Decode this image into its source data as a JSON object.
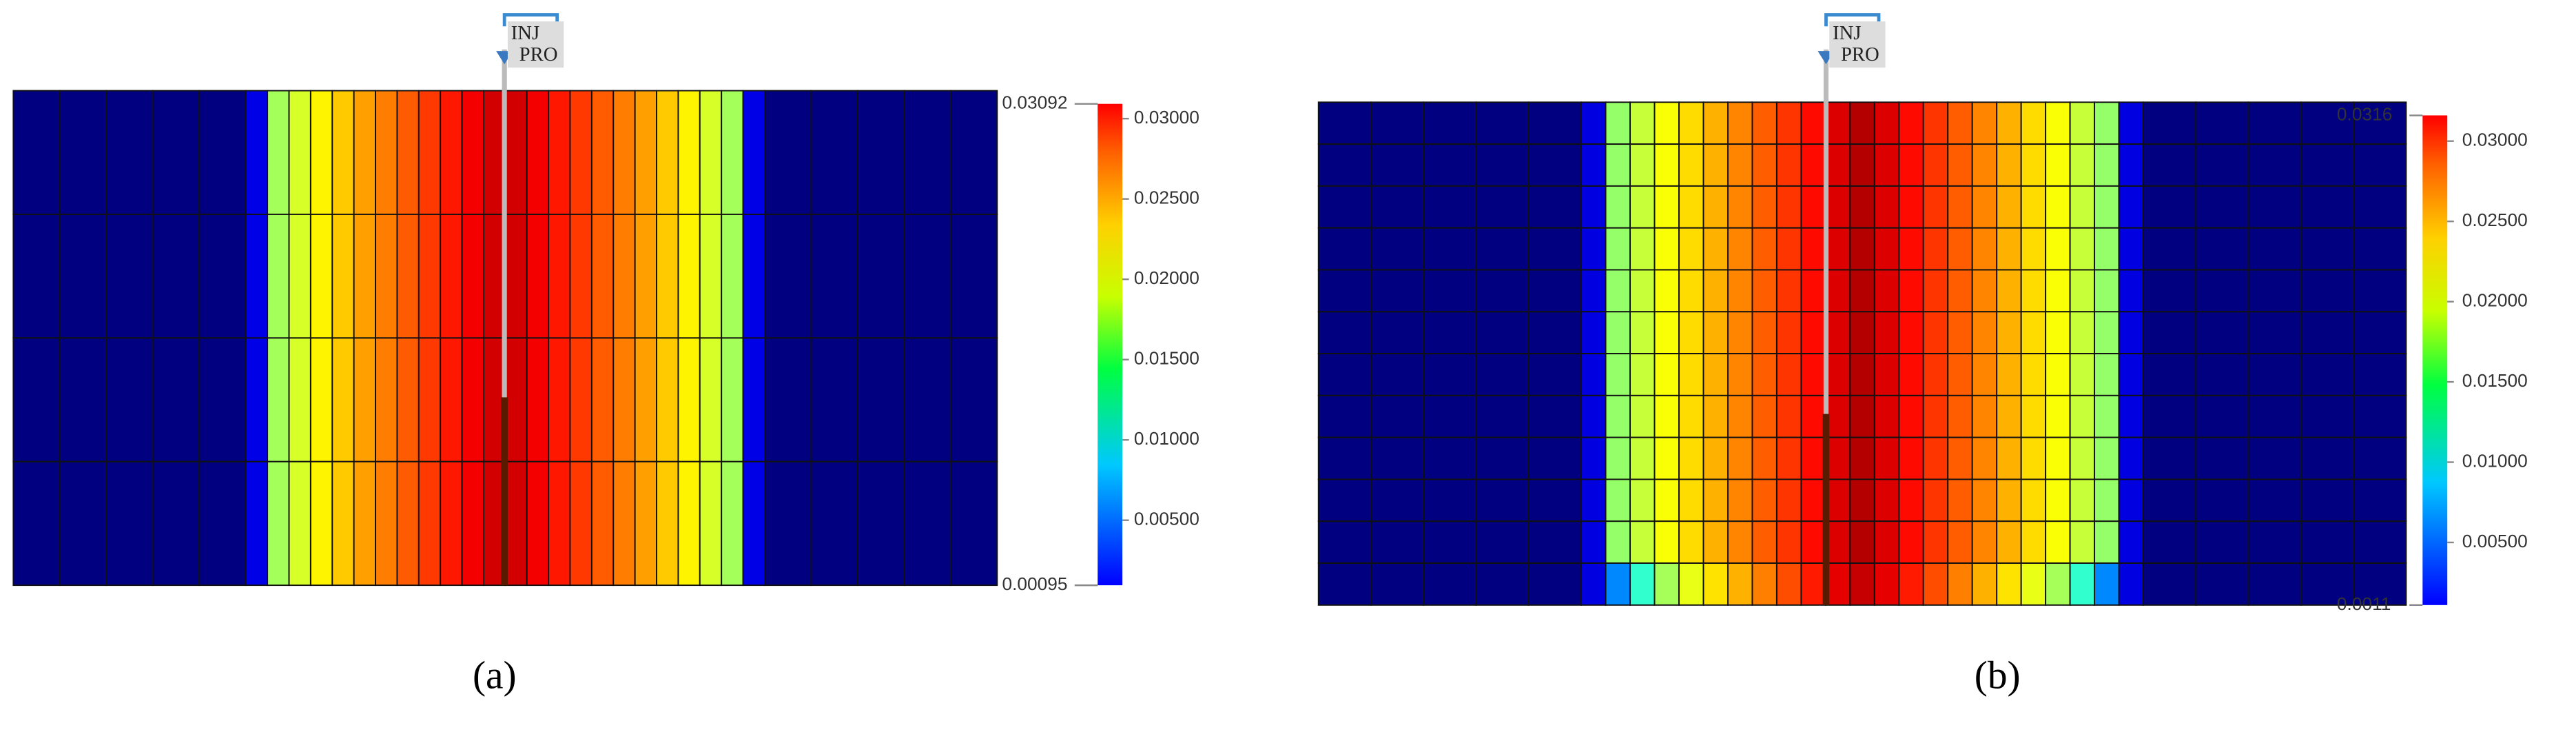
{
  "chart_data": [
    {
      "type": "heatmap",
      "label": "(a)",
      "well_labels": [
        "INJ",
        "PRO"
      ],
      "values": [
        [
          0.00095,
          0.00095,
          0.00095,
          0.00095,
          0.00095,
          0.004,
          0.017,
          0.0185,
          0.02,
          0.0212,
          0.0225,
          0.0235,
          0.0245,
          0.0255,
          0.0265,
          0.0275,
          0.0285,
          0.0285,
          0.0275,
          0.0265,
          0.0255,
          0.0245,
          0.0235,
          0.0225,
          0.0212,
          0.02,
          0.0185,
          0.017,
          0.004,
          0.00095,
          0.00095,
          0.00095,
          0.00095,
          0.00095
        ],
        [
          0.00095,
          0.00095,
          0.00095,
          0.00095,
          0.00095,
          0.004,
          0.017,
          0.0185,
          0.02,
          0.0212,
          0.0225,
          0.0235,
          0.0245,
          0.0255,
          0.0265,
          0.0275,
          0.0285,
          0.0285,
          0.0275,
          0.0265,
          0.0255,
          0.0245,
          0.0235,
          0.0225,
          0.0212,
          0.02,
          0.0185,
          0.017,
          0.004,
          0.00095,
          0.00095,
          0.00095,
          0.00095,
          0.00095
        ],
        [
          0.00095,
          0.00095,
          0.00095,
          0.00095,
          0.00095,
          0.004,
          0.017,
          0.0185,
          0.02,
          0.0212,
          0.0225,
          0.0235,
          0.0245,
          0.0255,
          0.0265,
          0.0275,
          0.0285,
          0.0285,
          0.0275,
          0.0265,
          0.0255,
          0.0245,
          0.0235,
          0.0225,
          0.0212,
          0.02,
          0.0185,
          0.017,
          0.004,
          0.00095,
          0.00095,
          0.00095,
          0.00095,
          0.00095
        ],
        [
          0.00095,
          0.00095,
          0.00095,
          0.00095,
          0.00095,
          0.004,
          0.017,
          0.0185,
          0.02,
          0.0212,
          0.0225,
          0.0235,
          0.0245,
          0.0255,
          0.0265,
          0.0275,
          0.0285,
          0.0285,
          0.0275,
          0.0265,
          0.0255,
          0.0245,
          0.0235,
          0.0225,
          0.0212,
          0.02,
          0.0185,
          0.017,
          0.004,
          0.00095,
          0.00095,
          0.00095,
          0.00095,
          0.00095
        ]
      ],
      "clim": [
        0.00095,
        0.03092
      ],
      "cticks": [
        {
          "value": 0.005,
          "label": "0.00500"
        },
        {
          "value": 0.01,
          "label": "0.01000"
        },
        {
          "value": 0.015,
          "label": "0.01500"
        },
        {
          "value": 0.02,
          "label": "0.02000"
        },
        {
          "value": 0.025,
          "label": "0.02500"
        },
        {
          "value": 0.03,
          "label": "0.03000"
        }
      ]
    },
    {
      "type": "heatmap",
      "label": "(b)",
      "well_labels": [
        "INJ",
        "PRO"
      ],
      "values": [
        [
          0.0011,
          0.0011,
          0.0011,
          0.0011,
          0.0011,
          0.004,
          0.017,
          0.0185,
          0.02,
          0.0212,
          0.0225,
          0.0238,
          0.025,
          0.0262,
          0.0275,
          0.0288,
          0.03,
          0.0288,
          0.0275,
          0.0262,
          0.025,
          0.0238,
          0.0225,
          0.0212,
          0.02,
          0.0185,
          0.017,
          0.004,
          0.0011,
          0.0011,
          0.0011,
          0.0011,
          0.0011
        ],
        [
          0.0011,
          0.0011,
          0.0011,
          0.0011,
          0.0011,
          0.004,
          0.017,
          0.0185,
          0.02,
          0.0212,
          0.0225,
          0.0238,
          0.025,
          0.0262,
          0.0275,
          0.0288,
          0.03,
          0.0288,
          0.0275,
          0.0262,
          0.025,
          0.0238,
          0.0225,
          0.0212,
          0.02,
          0.0185,
          0.017,
          0.004,
          0.0011,
          0.0011,
          0.0011,
          0.0011,
          0.0011
        ],
        [
          0.0011,
          0.0011,
          0.0011,
          0.0011,
          0.0011,
          0.004,
          0.017,
          0.0185,
          0.02,
          0.0212,
          0.0225,
          0.0238,
          0.025,
          0.0262,
          0.0275,
          0.0288,
          0.03,
          0.0288,
          0.0275,
          0.0262,
          0.025,
          0.0238,
          0.0225,
          0.0212,
          0.02,
          0.0185,
          0.017,
          0.004,
          0.0011,
          0.0011,
          0.0011,
          0.0011,
          0.0011
        ],
        [
          0.0011,
          0.0011,
          0.0011,
          0.0011,
          0.0011,
          0.004,
          0.017,
          0.0185,
          0.02,
          0.0212,
          0.0225,
          0.0238,
          0.025,
          0.0262,
          0.0275,
          0.0288,
          0.03,
          0.0288,
          0.0275,
          0.0262,
          0.025,
          0.0238,
          0.0225,
          0.0212,
          0.02,
          0.0185,
          0.017,
          0.004,
          0.0011,
          0.0011,
          0.0011,
          0.0011,
          0.0011
        ],
        [
          0.0011,
          0.0011,
          0.0011,
          0.0011,
          0.0011,
          0.004,
          0.017,
          0.0185,
          0.02,
          0.0212,
          0.0225,
          0.0238,
          0.025,
          0.0262,
          0.0275,
          0.0288,
          0.03,
          0.0288,
          0.0275,
          0.0262,
          0.025,
          0.0238,
          0.0225,
          0.0212,
          0.02,
          0.0185,
          0.017,
          0.004,
          0.0011,
          0.0011,
          0.0011,
          0.0011,
          0.0011
        ],
        [
          0.0011,
          0.0011,
          0.0011,
          0.0011,
          0.0011,
          0.004,
          0.017,
          0.0185,
          0.02,
          0.0212,
          0.0225,
          0.0238,
          0.025,
          0.0262,
          0.0275,
          0.0288,
          0.03,
          0.0288,
          0.0275,
          0.0262,
          0.025,
          0.0238,
          0.0225,
          0.0212,
          0.02,
          0.0185,
          0.017,
          0.004,
          0.0011,
          0.0011,
          0.0011,
          0.0011,
          0.0011
        ],
        [
          0.0011,
          0.0011,
          0.0011,
          0.0011,
          0.0011,
          0.004,
          0.017,
          0.0185,
          0.02,
          0.0212,
          0.0225,
          0.0238,
          0.025,
          0.0262,
          0.0275,
          0.0288,
          0.03,
          0.0288,
          0.0275,
          0.0262,
          0.025,
          0.0238,
          0.0225,
          0.0212,
          0.02,
          0.0185,
          0.017,
          0.004,
          0.0011,
          0.0011,
          0.0011,
          0.0011,
          0.0011
        ],
        [
          0.0011,
          0.0011,
          0.0011,
          0.0011,
          0.0011,
          0.004,
          0.017,
          0.0185,
          0.02,
          0.0212,
          0.0225,
          0.0238,
          0.025,
          0.0262,
          0.0275,
          0.0288,
          0.03,
          0.0288,
          0.0275,
          0.0262,
          0.025,
          0.0238,
          0.0225,
          0.0212,
          0.02,
          0.0185,
          0.017,
          0.004,
          0.0011,
          0.0011,
          0.0011,
          0.0011,
          0.0011
        ],
        [
          0.0011,
          0.0011,
          0.0011,
          0.0011,
          0.0011,
          0.004,
          0.017,
          0.0185,
          0.02,
          0.0212,
          0.0225,
          0.0238,
          0.025,
          0.0262,
          0.0275,
          0.0288,
          0.03,
          0.0288,
          0.0275,
          0.0262,
          0.025,
          0.0238,
          0.0225,
          0.0212,
          0.02,
          0.0185,
          0.017,
          0.004,
          0.0011,
          0.0011,
          0.0011,
          0.0011,
          0.0011
        ],
        [
          0.0011,
          0.0011,
          0.0011,
          0.0011,
          0.0011,
          0.004,
          0.017,
          0.0185,
          0.02,
          0.0212,
          0.0225,
          0.0238,
          0.025,
          0.0262,
          0.0275,
          0.0288,
          0.03,
          0.0288,
          0.0275,
          0.0262,
          0.025,
          0.0238,
          0.0225,
          0.0212,
          0.02,
          0.0185,
          0.017,
          0.004,
          0.0011,
          0.0011,
          0.0011,
          0.0011,
          0.0011
        ],
        [
          0.0011,
          0.0011,
          0.0011,
          0.0011,
          0.0011,
          0.004,
          0.017,
          0.0185,
          0.02,
          0.0212,
          0.0225,
          0.0238,
          0.025,
          0.0262,
          0.0275,
          0.0288,
          0.03,
          0.0288,
          0.0275,
          0.0262,
          0.025,
          0.0238,
          0.0225,
          0.0212,
          0.02,
          0.0185,
          0.017,
          0.004,
          0.0011,
          0.0011,
          0.0011,
          0.0011,
          0.0011
        ],
        [
          0.0011,
          0.0011,
          0.0011,
          0.0011,
          0.0011,
          0.004,
          0.009,
          0.014,
          0.0175,
          0.0195,
          0.021,
          0.0225,
          0.024,
          0.0255,
          0.027,
          0.0285,
          0.0295,
          0.0285,
          0.027,
          0.0255,
          0.024,
          0.0225,
          0.021,
          0.0195,
          0.0175,
          0.014,
          0.009,
          0.004,
          0.0011,
          0.0011,
          0.0011,
          0.0011,
          0.0011
        ]
      ],
      "clim": [
        0.0011,
        0.0316
      ],
      "cticks": [
        {
          "value": 0.005,
          "label": "0.00500"
        },
        {
          "value": 0.01,
          "label": "0.01000"
        },
        {
          "value": 0.015,
          "label": "0.01500"
        },
        {
          "value": 0.02,
          "label": "0.02000"
        },
        {
          "value": 0.025,
          "label": "0.02500"
        },
        {
          "value": 0.03,
          "label": "0.03000"
        }
      ]
    }
  ]
}
